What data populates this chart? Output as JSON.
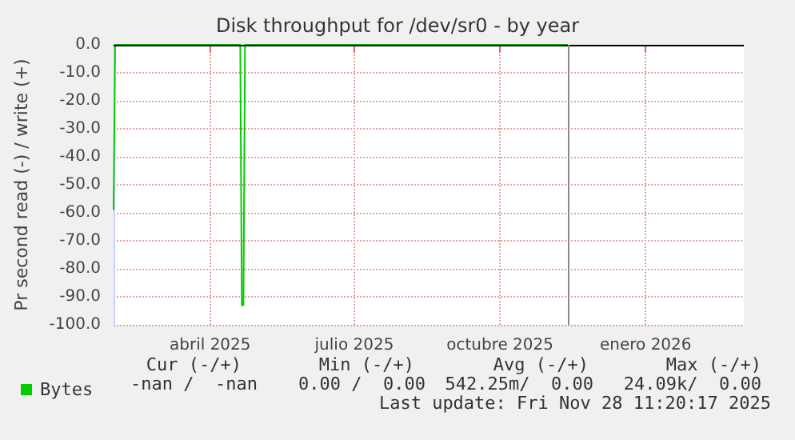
{
  "chart_data": {
    "type": "line",
    "title": "Disk throughput for /dev/sr0 - by year",
    "ylabel": "Pr second read (-) / write (+)",
    "series": [
      {
        "name": "Bytes",
        "color": "#00cc00",
        "x": [
          "2025-01-30",
          "2025-01-31",
          "2025-04-20",
          "2025-04-21",
          "2025-04-22",
          "2025-04-23",
          "2025-11-13"
        ],
        "values": [
          -59,
          0,
          0,
          -93,
          -93,
          0,
          0
        ]
      }
    ],
    "xlim": [
      "2025-01-30",
      "2026-03-04"
    ],
    "xticks": [
      {
        "value": "2025-04-01",
        "label": "abril 2025"
      },
      {
        "value": "2025-07-01",
        "label": "julio 2025"
      },
      {
        "value": "2025-10-01",
        "label": "octubre 2025"
      },
      {
        "value": "2026-01-01",
        "label": "enero 2026"
      }
    ],
    "ylim": [
      -100,
      0
    ],
    "yticks": [
      {
        "value": -100,
        "label": "-100.0"
      },
      {
        "value": -90,
        "label": "-90.0"
      },
      {
        "value": -80,
        "label": "-80.0"
      },
      {
        "value": -70,
        "label": "-70.0"
      },
      {
        "value": -60,
        "label": "-60.0"
      },
      {
        "value": -50,
        "label": "-50.0"
      },
      {
        "value": -40,
        "label": "-40.0"
      },
      {
        "value": -30,
        "label": "-30.0"
      },
      {
        "value": -20,
        "label": "-20.0"
      },
      {
        "value": -10,
        "label": "-10.0"
      },
      {
        "value": 0,
        "label": "0.0"
      }
    ],
    "ref_lines": [
      {
        "axis": "y",
        "value": 0,
        "color": "#000000"
      },
      {
        "axis": "x",
        "value": "2025-11-13",
        "color": "#888888"
      }
    ],
    "grid": true,
    "legend": "bottom left",
    "marker": "none",
    "line_style": "solid",
    "annotations": [
      "Cur (-/+)",
      "Min (-/+)",
      "Avg (-/+)",
      "Max (-/+)",
      "-nan /  -nan",
      "0.00 /  0.00",
      "542.25m/  0.00",
      "24.09k/  0.00",
      "Last update: Fri Nov 28 11:20:17 2025"
    ]
  }
}
